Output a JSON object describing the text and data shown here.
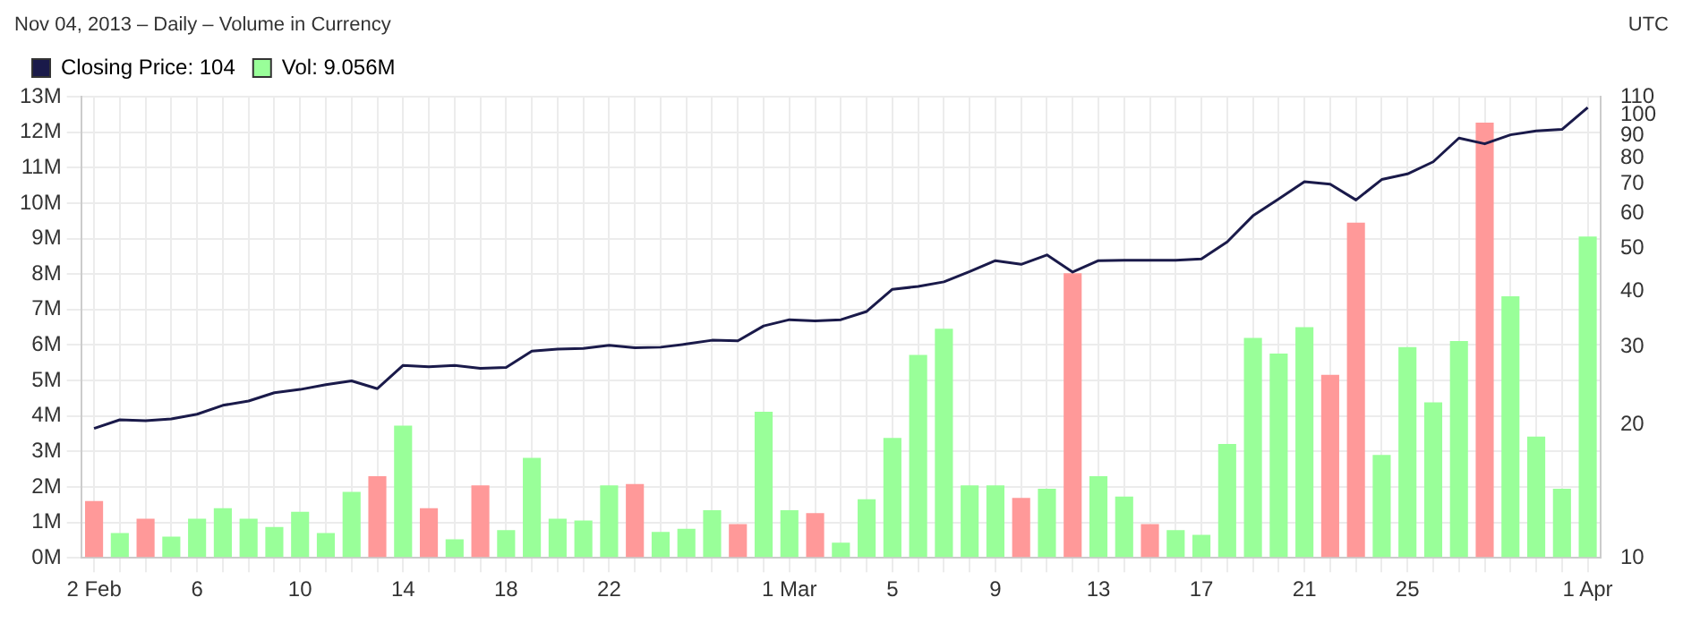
{
  "chart_data": {
    "type": "bar",
    "subtitle": "Nov 04, 2013 – Daily – Volume in Currency",
    "annotations": [
      "UTC"
    ],
    "categories": [
      "2 Feb",
      null,
      null,
      null,
      "6",
      null,
      null,
      null,
      "10",
      null,
      null,
      null,
      "14",
      null,
      null,
      null,
      "18",
      null,
      null,
      null,
      "22",
      null,
      null,
      null,
      null,
      null,
      null,
      "1 Mar",
      null,
      null,
      null,
      "5",
      null,
      null,
      null,
      "9",
      null,
      null,
      null,
      "13",
      null,
      null,
      null,
      "17",
      null,
      null,
      null,
      "21",
      null,
      null,
      null,
      "25",
      null,
      null,
      null,
      null,
      null,
      null,
      "1 Apr"
    ],
    "series": [
      {
        "type": "line",
        "name": "Closing Price: 104",
        "color": "#1a1a4a",
        "axis": "y2",
        "values": [
          19.6,
          20.5,
          20.4,
          20.6,
          21.1,
          22.1,
          22.6,
          23.6,
          24.0,
          24.6,
          25.1,
          24.1,
          27.2,
          27.0,
          27.2,
          26.8,
          26.9,
          29.3,
          29.6,
          29.7,
          30.2,
          29.8,
          29.9,
          30.4,
          31.0,
          30.9,
          33.4,
          34.5,
          34.3,
          34.5,
          36.0,
          40.4,
          41.0,
          42.0,
          44.3,
          46.9,
          46.0,
          48.3,
          44.2,
          46.9,
          47.0,
          47.0,
          47.0,
          47.3,
          51.7,
          59.2,
          64.6,
          70.7,
          69.8,
          64.3,
          71.5,
          73.6,
          78.4,
          88.7,
          86.1,
          90.2,
          92.1,
          92.8,
          104
        ]
      },
      {
        "name": "Vol: 9.056M",
        "color": "#99ff99",
        "values": [
          1.6,
          0.7,
          1.1,
          0.6,
          1.1,
          1.4,
          1.1,
          0.87,
          1.3,
          0.7,
          1.86,
          2.3,
          3.73,
          1.4,
          0.52,
          2.04,
          0.78,
          2.82,
          1.1,
          1.05,
          2.04,
          2.08,
          0.73,
          0.82,
          1.34,
          0.95,
          4.12,
          1.34,
          1.26,
          0.43,
          1.65,
          3.38,
          5.72,
          6.46,
          2.04,
          2.04,
          1.69,
          1.95,
          8.02,
          2.3,
          1.73,
          0.95,
          0.78,
          0.65,
          3.21,
          6.2,
          5.76,
          6.5,
          5.16,
          9.45,
          2.9,
          5.94,
          4.38,
          6.11,
          12.27,
          7.37,
          3.42,
          1.95,
          9.056
        ],
        "colors": [
          "#ff9999",
          "#99ff99",
          "#ff9999",
          "#99ff99",
          "#99ff99",
          "#99ff99",
          "#99ff99",
          "#99ff99",
          "#99ff99",
          "#99ff99",
          "#99ff99",
          "#ff9999",
          "#99ff99",
          "#ff9999",
          "#99ff99",
          "#ff9999",
          "#99ff99",
          "#99ff99",
          "#99ff99",
          "#99ff99",
          "#99ff99",
          "#ff9999",
          "#99ff99",
          "#99ff99",
          "#99ff99",
          "#ff9999",
          "#99ff99",
          "#99ff99",
          "#ff9999",
          "#99ff99",
          "#99ff99",
          "#99ff99",
          "#99ff99",
          "#99ff99",
          "#99ff99",
          "#99ff99",
          "#ff9999",
          "#99ff99",
          "#ff9999",
          "#99ff99",
          "#99ff99",
          "#ff9999",
          "#99ff99",
          "#99ff99",
          "#99ff99",
          "#99ff99",
          "#99ff99",
          "#99ff99",
          "#ff9999",
          "#ff9999",
          "#99ff99",
          "#99ff99",
          "#99ff99",
          "#99ff99",
          "#ff9999",
          "#99ff99",
          "#99ff99",
          "#99ff99",
          "#99ff99"
        ]
      }
    ],
    "ylim": [
      0,
      13
    ],
    "yticks": [
      {
        "value": 0,
        "label": "0M"
      },
      {
        "value": 1,
        "label": "1M"
      },
      {
        "value": 2,
        "label": "2M"
      },
      {
        "value": 3,
        "label": "3M"
      },
      {
        "value": 4,
        "label": "4M"
      },
      {
        "value": 5,
        "label": "5M"
      },
      {
        "value": 6,
        "label": "6M"
      },
      {
        "value": 7,
        "label": "7M"
      },
      {
        "value": 8,
        "label": "8M"
      },
      {
        "value": 9,
        "label": "9M"
      },
      {
        "value": 10,
        "label": "10M"
      },
      {
        "value": 11,
        "label": "11M"
      },
      {
        "value": 12,
        "label": "12M"
      },
      {
        "value": 13,
        "label": "13M"
      }
    ],
    "y2lim": [
      10,
      110
    ],
    "y2ticks": [
      10,
      20,
      30,
      40,
      50,
      60,
      70,
      80,
      90,
      100,
      110
    ],
    "log": "y2",
    "grid": true,
    "legend": "top left"
  }
}
